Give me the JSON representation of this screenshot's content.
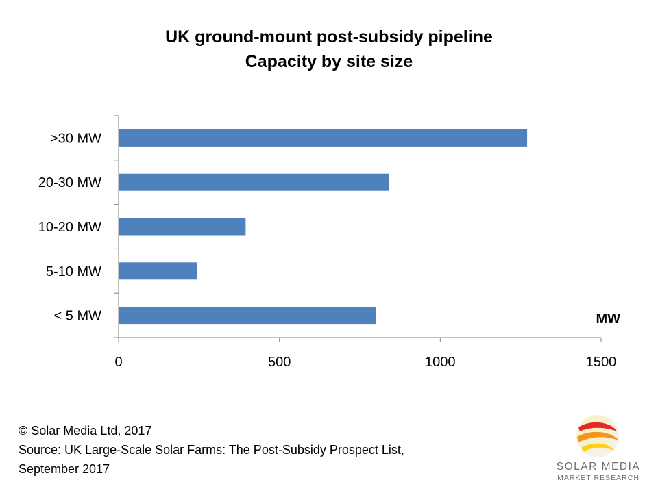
{
  "chart_data": {
    "type": "bar",
    "orientation": "horizontal",
    "title": "UK ground-mount post-subsidy pipeline",
    "subtitle": "Capacity by site size",
    "categories": [
      ">30 MW",
      "20-30 MW",
      "10-20 MW",
      "5-10 MW",
      "< 5 MW"
    ],
    "values": [
      1270,
      840,
      395,
      245,
      800
    ],
    "xlabel": "MW",
    "xlim": [
      0,
      1500
    ],
    "xticks": [
      "0",
      "500",
      "1000",
      "1500"
    ],
    "bar_color": "#4f81bd",
    "grid": false,
    "legend": "none"
  },
  "footer": {
    "copyright": "© Solar Media Ltd, 2017",
    "source_line1": "Source: UK Large-Scale Solar Farms: The Post-Subsidy Prospect List,",
    "source_line2": "September 2017"
  },
  "logo": {
    "name": "SOLAR MEDIA",
    "tagline": "MARKET RESEARCH",
    "colors": [
      "#e8272a",
      "#f7941d",
      "#fcd116"
    ]
  }
}
